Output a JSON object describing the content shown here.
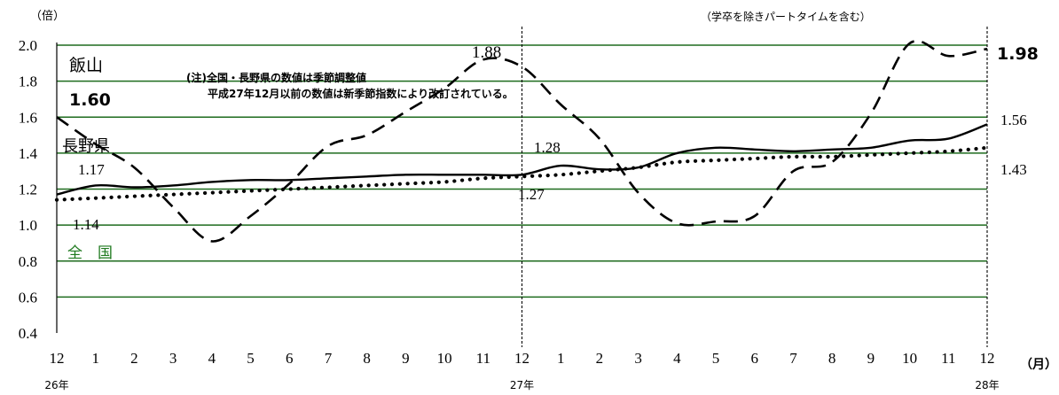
{
  "chart_data": {
    "type": "line",
    "y_unit_label": "（倍）",
    "x_unit_label": "（月）",
    "subtitle": "（学卒を除きパートタイムを含む）",
    "note_lines": [
      "(注)全国・長野県の数値は季節調整値",
      "平成27年12月以前の数値は新季節指数により改訂されている。"
    ],
    "ylim": [
      0.4,
      2.0
    ],
    "y_ticks": [
      "0.4",
      "0.6",
      "0.8",
      "1.0",
      "1.2",
      "1.4",
      "1.6",
      "1.8",
      "2.0"
    ],
    "x_tick_labels": [
      "12",
      "1",
      "2",
      "3",
      "4",
      "5",
      "6",
      "7",
      "8",
      "9",
      "10",
      "11",
      "12",
      "1",
      "2",
      "3",
      "4",
      "5",
      "6",
      "7",
      "8",
      "9",
      "10",
      "11",
      "12"
    ],
    "year_labels": [
      {
        "at": 0,
        "text": "26年"
      },
      {
        "at": 12,
        "text": "27年"
      },
      {
        "at": 24,
        "text": "28年"
      }
    ],
    "divider_months": [
      12,
      24
    ],
    "grid": true,
    "series": [
      {
        "name": "飯山",
        "style": "dashed",
        "color": "#000000",
        "x": [
          0,
          1,
          2,
          3,
          4,
          5,
          6,
          7,
          8,
          9,
          10,
          11,
          12,
          13,
          14,
          15,
          16,
          17,
          18,
          19,
          20,
          21,
          22,
          23,
          24
        ],
        "values": [
          1.6,
          1.45,
          1.32,
          1.1,
          0.91,
          1.05,
          1.23,
          1.44,
          1.5,
          1.63,
          1.76,
          1.92,
          1.88,
          1.67,
          1.48,
          1.18,
          1.01,
          1.02,
          1.05,
          1.3,
          1.35,
          1.62,
          2.01,
          1.94,
          1.98
        ],
        "start_value_label": "1.60",
        "end_value_label": "1.98",
        "annotations": [
          {
            "at": 12,
            "text": "1.88"
          }
        ]
      },
      {
        "name": "長野県",
        "style": "solid",
        "color": "#000000",
        "x": [
          0,
          1,
          2,
          3,
          4,
          5,
          6,
          7,
          8,
          9,
          10,
          11,
          12,
          13,
          14,
          15,
          16,
          17,
          18,
          19,
          20,
          21,
          22,
          23,
          24
        ],
        "values": [
          1.17,
          1.22,
          1.21,
          1.22,
          1.24,
          1.25,
          1.25,
          1.26,
          1.27,
          1.28,
          1.28,
          1.28,
          1.28,
          1.33,
          1.31,
          1.32,
          1.4,
          1.43,
          1.42,
          1.41,
          1.42,
          1.43,
          1.47,
          1.48,
          1.56
        ],
        "start_value_label": "1.17",
        "end_value_label": "1.56",
        "annotations": [
          {
            "at": 12,
            "text": "1.28"
          }
        ]
      },
      {
        "name": "全　国",
        "style": "dotted",
        "color": "#000000",
        "label_color": "#1f7a1f",
        "x": [
          0,
          1,
          2,
          3,
          4,
          5,
          6,
          7,
          8,
          9,
          10,
          11,
          12,
          13,
          14,
          15,
          16,
          17,
          18,
          19,
          20,
          21,
          22,
          23,
          24
        ],
        "values": [
          1.14,
          1.15,
          1.16,
          1.17,
          1.18,
          1.19,
          1.2,
          1.21,
          1.22,
          1.23,
          1.24,
          1.26,
          1.27,
          1.28,
          1.3,
          1.32,
          1.35,
          1.36,
          1.37,
          1.38,
          1.38,
          1.39,
          1.4,
          1.41,
          1.43
        ],
        "start_value_label": "1.14",
        "end_value_label": "1.43",
        "annotations": [
          {
            "at": 12,
            "text": "1.27"
          }
        ]
      }
    ],
    "colors": {
      "grid": "#1e6b1e",
      "green_label": "#1f7a1f",
      "line": "#000000"
    }
  }
}
